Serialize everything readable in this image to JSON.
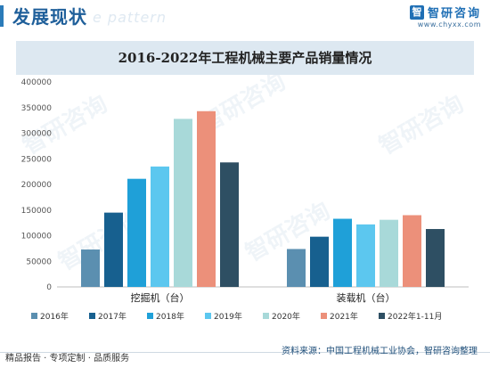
{
  "header": {
    "title": "发展现状",
    "ghost_text": "e pattern",
    "brand_name": "智研咨询",
    "brand_url": "www.chyxx.com"
  },
  "watermark_text": "智研咨询",
  "colors": {
    "title_band": "#dde8f1",
    "series": [
      "#5b8fb0",
      "#17608f",
      "#1fa0d8",
      "#5cc7ef",
      "#a8d9d9",
      "#ec907a",
      "#2e4f63"
    ]
  },
  "chart_data": {
    "type": "bar",
    "title": "2016-2022年工程机械主要产品销量情况",
    "categories": [
      "挖掘机（台）",
      "装载机（台）"
    ],
    "ylim": [
      0,
      400000
    ],
    "yticks": [
      0,
      50000,
      100000,
      150000,
      200000,
      250000,
      300000,
      350000,
      400000
    ],
    "grid": false,
    "legend_position": "bottom",
    "series": [
      {
        "name": "2016年",
        "values": [
          73000,
          74000
        ]
      },
      {
        "name": "2017年",
        "values": [
          145000,
          98000
        ]
      },
      {
        "name": "2018年",
        "values": [
          211000,
          133000
        ]
      },
      {
        "name": "2019年",
        "values": [
          235000,
          122000
        ]
      },
      {
        "name": "2020年",
        "values": [
          328000,
          131000
        ]
      },
      {
        "name": "2021年",
        "values": [
          343000,
          140000
        ]
      },
      {
        "name": "2022年1-11月",
        "values": [
          243000,
          113000
        ]
      }
    ]
  },
  "footer": {
    "left": "精品报告 · 专项定制 · 品质服务",
    "source": "资料来源：中国工程机械工业协会，智研咨询整理"
  }
}
